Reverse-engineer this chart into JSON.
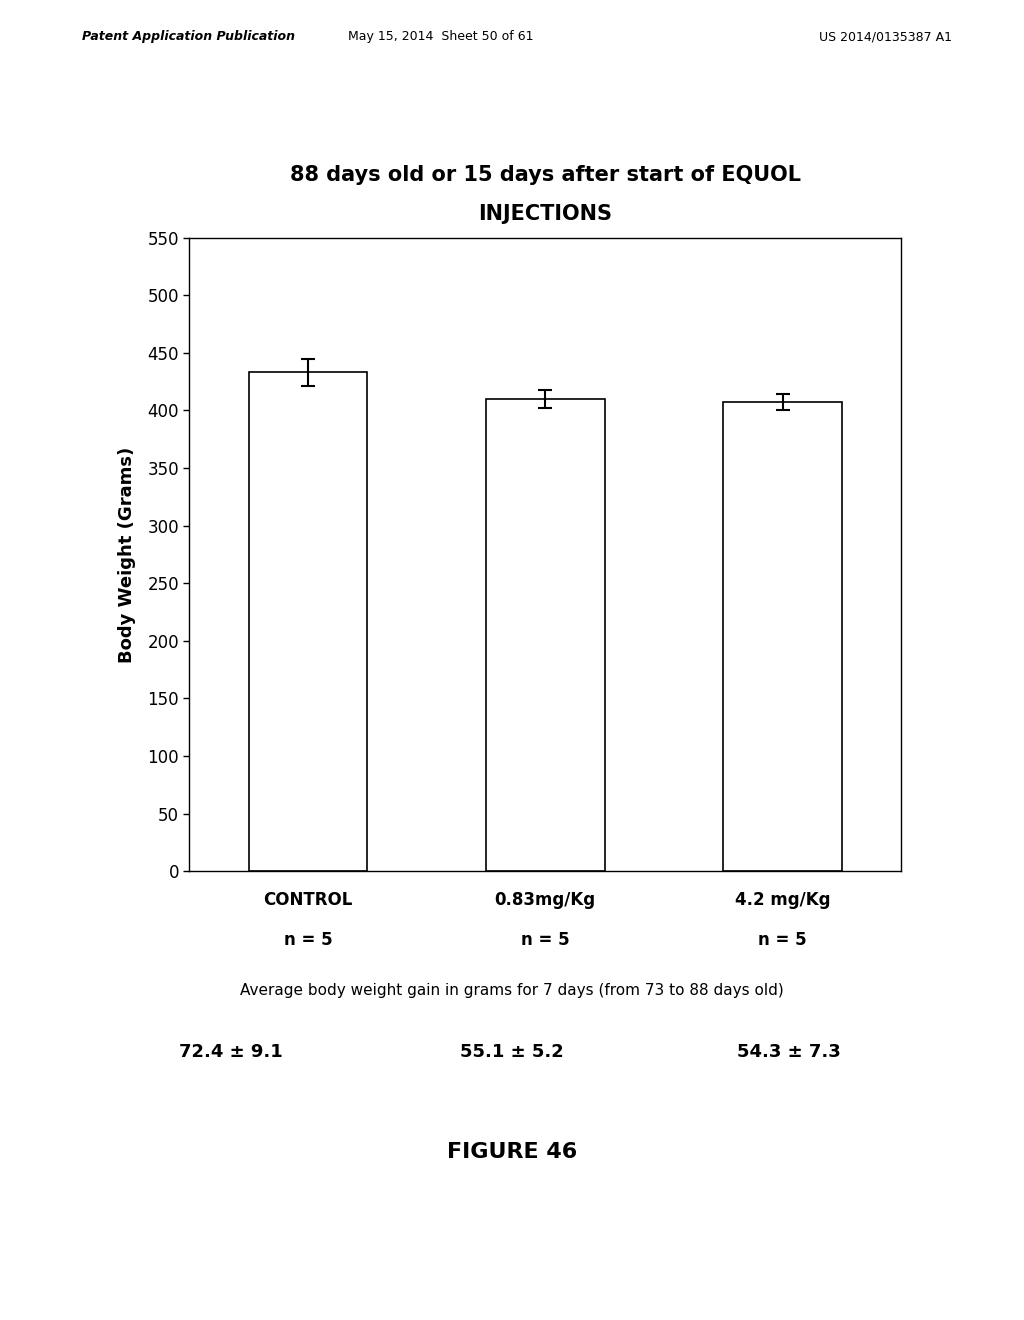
{
  "title_line1": "88 days old or 15 days after start of EQUOL",
  "title_line2": "INJECTIONS",
  "bar_values": [
    433,
    410,
    407
  ],
  "bar_errors": [
    12,
    8,
    7
  ],
  "ylabel": "Body Weight (Grams)",
  "ylim": [
    0,
    550
  ],
  "yticks": [
    0,
    50,
    100,
    150,
    200,
    250,
    300,
    350,
    400,
    450,
    500,
    550
  ],
  "bar_color": "#ffffff",
  "bar_edgecolor": "#000000",
  "bar_width": 0.5,
  "bar_positions": [
    1,
    2,
    3
  ],
  "xticklabels_line1": [
    "CONTROL",
    "0.83mg/Kg",
    "4.2 mg/Kg"
  ],
  "xticklabels_line2": [
    "n = 5",
    "n = 5",
    "n = 5"
  ],
  "caption": "Average body weight gain in grams for 7 days (from 73 to 88 days old)",
  "stats": [
    "72.4 ± 9.1",
    "55.1 ± 5.2",
    "54.3 ± 7.3"
  ],
  "figure_label": "FIGURE 46",
  "header_left": "Patent Application Publication",
  "header_center": "May 15, 2014  Sheet 50 of 61",
  "header_right": "US 2014/0135387 A1",
  "background_color": "#ffffff",
  "title_fontsize": 15,
  "axis_fontsize": 13,
  "tick_fontsize": 12,
  "caption_fontsize": 11,
  "stats_fontsize": 13,
  "figure_label_fontsize": 16
}
